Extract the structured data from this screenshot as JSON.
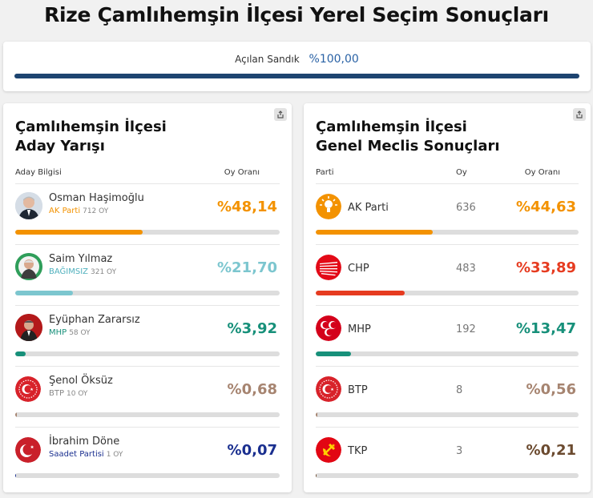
{
  "page_title": "Rize Çamlıhemşin İlçesi Yerel Seçim Sonuçları",
  "sandik": {
    "label": "Açılan Sandık",
    "value": "%100,00",
    "progress": 100
  },
  "colors": {
    "akp": "#f39200",
    "chp": "#e63b20",
    "mhp_green": "#17907a",
    "grey_pct": "#a68470",
    "saadet": "#1a2f8f",
    "bagimsiz": "#7cc6cf",
    "tkp_pct": "#6b4a2f"
  },
  "left": {
    "title_line1": "Çamlıhemşin İlçesi",
    "title_line2": "Aday Yarışı",
    "col_info": "Aday Bilgisi",
    "col_rate": "Oy Oranı",
    "rows": [
      {
        "name": "Osman Haşimoğlu",
        "party": "AK Parti",
        "votes": "712 OY",
        "pct": "%48,14",
        "share": 48.14,
        "color": "#f39200",
        "party_color": "#f39200",
        "icon": "candidate-photo-osman"
      },
      {
        "name": "Saim Yılmaz",
        "party": "BAĞIMSIZ",
        "votes": "321 OY",
        "pct": "%21,70",
        "share": 21.7,
        "color": "#7cc6cf",
        "party_color": "#4fb0bd",
        "icon": "candidate-photo-saim"
      },
      {
        "name": "Eyüphan Zararsız",
        "party": "MHP",
        "votes": "58 OY",
        "pct": "%3,92",
        "share": 3.92,
        "color": "#17907a",
        "party_color": "#17907a",
        "icon": "candidate-photo-eyuphan"
      },
      {
        "name": "Şenol Öksüz",
        "party": "BTP",
        "votes": "10 OY",
        "pct": "%0,68",
        "share": 0.68,
        "color": "#a68470",
        "party_color": "#888888",
        "icon": "btp-logo"
      },
      {
        "name": "İbrahim Döne",
        "party": "Saadet Partisi",
        "votes": "1 OY",
        "pct": "%0,07",
        "share": 0.07,
        "color": "#1a2f8f",
        "party_color": "#1a2f8f",
        "icon": "saadet-logo"
      }
    ]
  },
  "right": {
    "title_line1": "Çamlıhemşin İlçesi",
    "title_line2": "Genel Meclis Sonuçları",
    "col_party": "Parti",
    "col_votes": "Oy",
    "col_rate": "Oy Oranı",
    "rows": [
      {
        "party": "AK Parti",
        "votes": "636",
        "pct": "%44,63",
        "share": 44.63,
        "color": "#f39200",
        "icon": "ak-parti-logo"
      },
      {
        "party": "CHP",
        "votes": "483",
        "pct": "%33,89",
        "share": 33.89,
        "color": "#e63b20",
        "icon": "chp-logo"
      },
      {
        "party": "MHP",
        "votes": "192",
        "pct": "%13,47",
        "share": 13.47,
        "color": "#17907a",
        "icon": "mhp-logo"
      },
      {
        "party": "BTP",
        "votes": "8",
        "pct": "%0,56",
        "share": 0.56,
        "color": "#a68470",
        "icon": "btp-logo"
      },
      {
        "party": "TKP",
        "votes": "3",
        "pct": "%0,21",
        "share": 0.21,
        "color": "#6b4a2f",
        "icon": "tkp-logo"
      }
    ]
  }
}
